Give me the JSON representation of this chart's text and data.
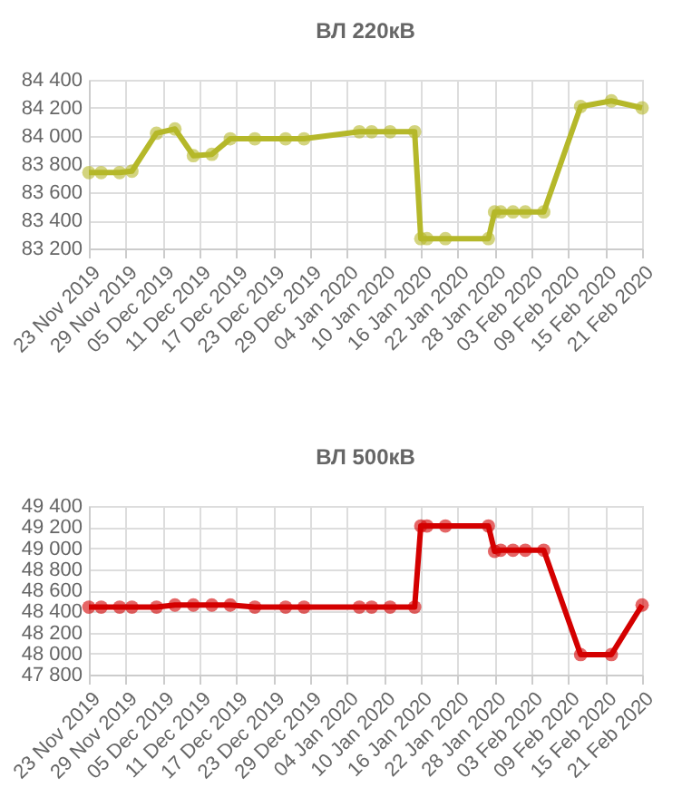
{
  "chart_data": [
    {
      "type": "line",
      "title": "ВЛ 220кВ",
      "x": [
        "2019-11-23",
        "2019-11-25",
        "2019-11-28",
        "2019-11-30",
        "2019-12-04",
        "2019-12-07",
        "2019-12-10",
        "2019-12-13",
        "2019-12-16",
        "2019-12-20",
        "2019-12-25",
        "2019-12-28",
        "2020-01-06",
        "2020-01-08",
        "2020-01-11",
        "2020-01-15",
        "2020-01-16",
        "2020-01-17",
        "2020-01-20",
        "2020-01-27",
        "2020-01-28",
        "2020-01-29",
        "2020-01-31",
        "2020-02-02",
        "2020-02-05",
        "2020-02-11",
        "2020-02-16",
        "2020-02-21"
      ],
      "series": [
        {
          "color": "#b5b82a",
          "values": [
            83740,
            83740,
            83740,
            83750,
            84020,
            84050,
            83860,
            83870,
            83980,
            83980,
            83980,
            83980,
            84030,
            84030,
            84030,
            84030,
            83270,
            83270,
            83270,
            83270,
            83460,
            83460,
            83460,
            83460,
            83460,
            84210,
            84250,
            84200
          ]
        }
      ],
      "xlim": [
        "2019-11-23",
        "2020-02-21"
      ],
      "xticks": [
        {
          "value": "2019-11-23",
          "label": "23 Nov 2019"
        },
        {
          "value": "2019-11-29",
          "label": "29 Nov 2019"
        },
        {
          "value": "2019-12-05",
          "label": "05 Dec 2019"
        },
        {
          "value": "2019-12-11",
          "label": "11 Dec 2019"
        },
        {
          "value": "2019-12-17",
          "label": "17 Dec 2019"
        },
        {
          "value": "2019-12-23",
          "label": "23 Dec 2019"
        },
        {
          "value": "2019-12-29",
          "label": "29 Dec 2019"
        },
        {
          "value": "2020-01-04",
          "label": "04 Jan 2020"
        },
        {
          "value": "2020-01-10",
          "label": "10 Jan 2020"
        },
        {
          "value": "2020-01-16",
          "label": "16 Jan 2020"
        },
        {
          "value": "2020-01-22",
          "label": "22 Jan 2020"
        },
        {
          "value": "2020-01-28",
          "label": "28 Jan 2020"
        },
        {
          "value": "2020-02-03",
          "label": "03 Feb 2020"
        },
        {
          "value": "2020-02-09",
          "label": "09 Feb 2020"
        },
        {
          "value": "2020-02-15",
          "label": "15 Feb 2020"
        },
        {
          "value": "2020-02-21",
          "label": "21 Feb 2020"
        }
      ],
      "ylim": [
        83200,
        84400
      ],
      "yticks": [
        {
          "value": 83200,
          "label": "83 200"
        },
        {
          "value": 83400,
          "label": "83 400"
        },
        {
          "value": 83600,
          "label": "83 600"
        },
        {
          "value": 83800,
          "label": "83 800"
        },
        {
          "value": 84000,
          "label": "84 000"
        },
        {
          "value": 84200,
          "label": "84 200"
        },
        {
          "value": 84400,
          "label": "84 400"
        }
      ],
      "grid": true,
      "marker": "circle",
      "line_style": "solid"
    },
    {
      "type": "line",
      "title": "ВЛ 500кВ",
      "x": [
        "2019-11-23",
        "2019-11-25",
        "2019-11-28",
        "2019-11-30",
        "2019-12-04",
        "2019-12-07",
        "2019-12-10",
        "2019-12-13",
        "2019-12-16",
        "2019-12-20",
        "2019-12-25",
        "2019-12-28",
        "2020-01-06",
        "2020-01-08",
        "2020-01-11",
        "2020-01-15",
        "2020-01-16",
        "2020-01-17",
        "2020-01-20",
        "2020-01-27",
        "2020-01-28",
        "2020-01-29",
        "2020-01-31",
        "2020-02-02",
        "2020-02-05",
        "2020-02-11",
        "2020-02-16",
        "2020-02-21"
      ],
      "series": [
        {
          "color": "#d40000",
          "values": [
            48440,
            48440,
            48440,
            48440,
            48440,
            48460,
            48460,
            48460,
            48460,
            48440,
            48440,
            48440,
            48440,
            48440,
            48440,
            48440,
            49210,
            49210,
            49210,
            49210,
            48970,
            48980,
            48980,
            48980,
            48980,
            47990,
            47990,
            48460
          ]
        }
      ],
      "xlim": [
        "2019-11-23",
        "2020-02-21"
      ],
      "xticks": [
        {
          "value": "2019-11-23",
          "label": "23 Nov 2019"
        },
        {
          "value": "2019-11-29",
          "label": "29 Nov 2019"
        },
        {
          "value": "2019-12-05",
          "label": "05 Dec 2019"
        },
        {
          "value": "2019-12-11",
          "label": "11 Dec 2019"
        },
        {
          "value": "2019-12-17",
          "label": "17 Dec 2019"
        },
        {
          "value": "2019-12-23",
          "label": "23 Dec 2019"
        },
        {
          "value": "2019-12-29",
          "label": "29 Dec 2019"
        },
        {
          "value": "2020-01-04",
          "label": "04 Jan 2020"
        },
        {
          "value": "2020-01-10",
          "label": "10 Jan 2020"
        },
        {
          "value": "2020-01-16",
          "label": "16 Jan 2020"
        },
        {
          "value": "2020-01-22",
          "label": "22 Jan 2020"
        },
        {
          "value": "2020-01-28",
          "label": "28 Jan 2020"
        },
        {
          "value": "2020-02-03",
          "label": "03 Feb 2020"
        },
        {
          "value": "2020-02-09",
          "label": "09 Feb 2020"
        },
        {
          "value": "2020-02-15",
          "label": "15 Feb 2020"
        },
        {
          "value": "2020-02-21",
          "label": "21 Feb 2020"
        }
      ],
      "ylim": [
        47800,
        49400
      ],
      "yticks": [
        {
          "value": 47800,
          "label": "47 800"
        },
        {
          "value": 48000,
          "label": "48 000"
        },
        {
          "value": 48200,
          "label": "48 200"
        },
        {
          "value": 48400,
          "label": "48 400"
        },
        {
          "value": 48600,
          "label": "48 600"
        },
        {
          "value": 48800,
          "label": "48 800"
        },
        {
          "value": 49000,
          "label": "49 000"
        },
        {
          "value": 49200,
          "label": "49 200"
        },
        {
          "value": 49400,
          "label": "49 400"
        }
      ],
      "grid": true,
      "marker": "circle",
      "line_style": "solid"
    }
  ]
}
